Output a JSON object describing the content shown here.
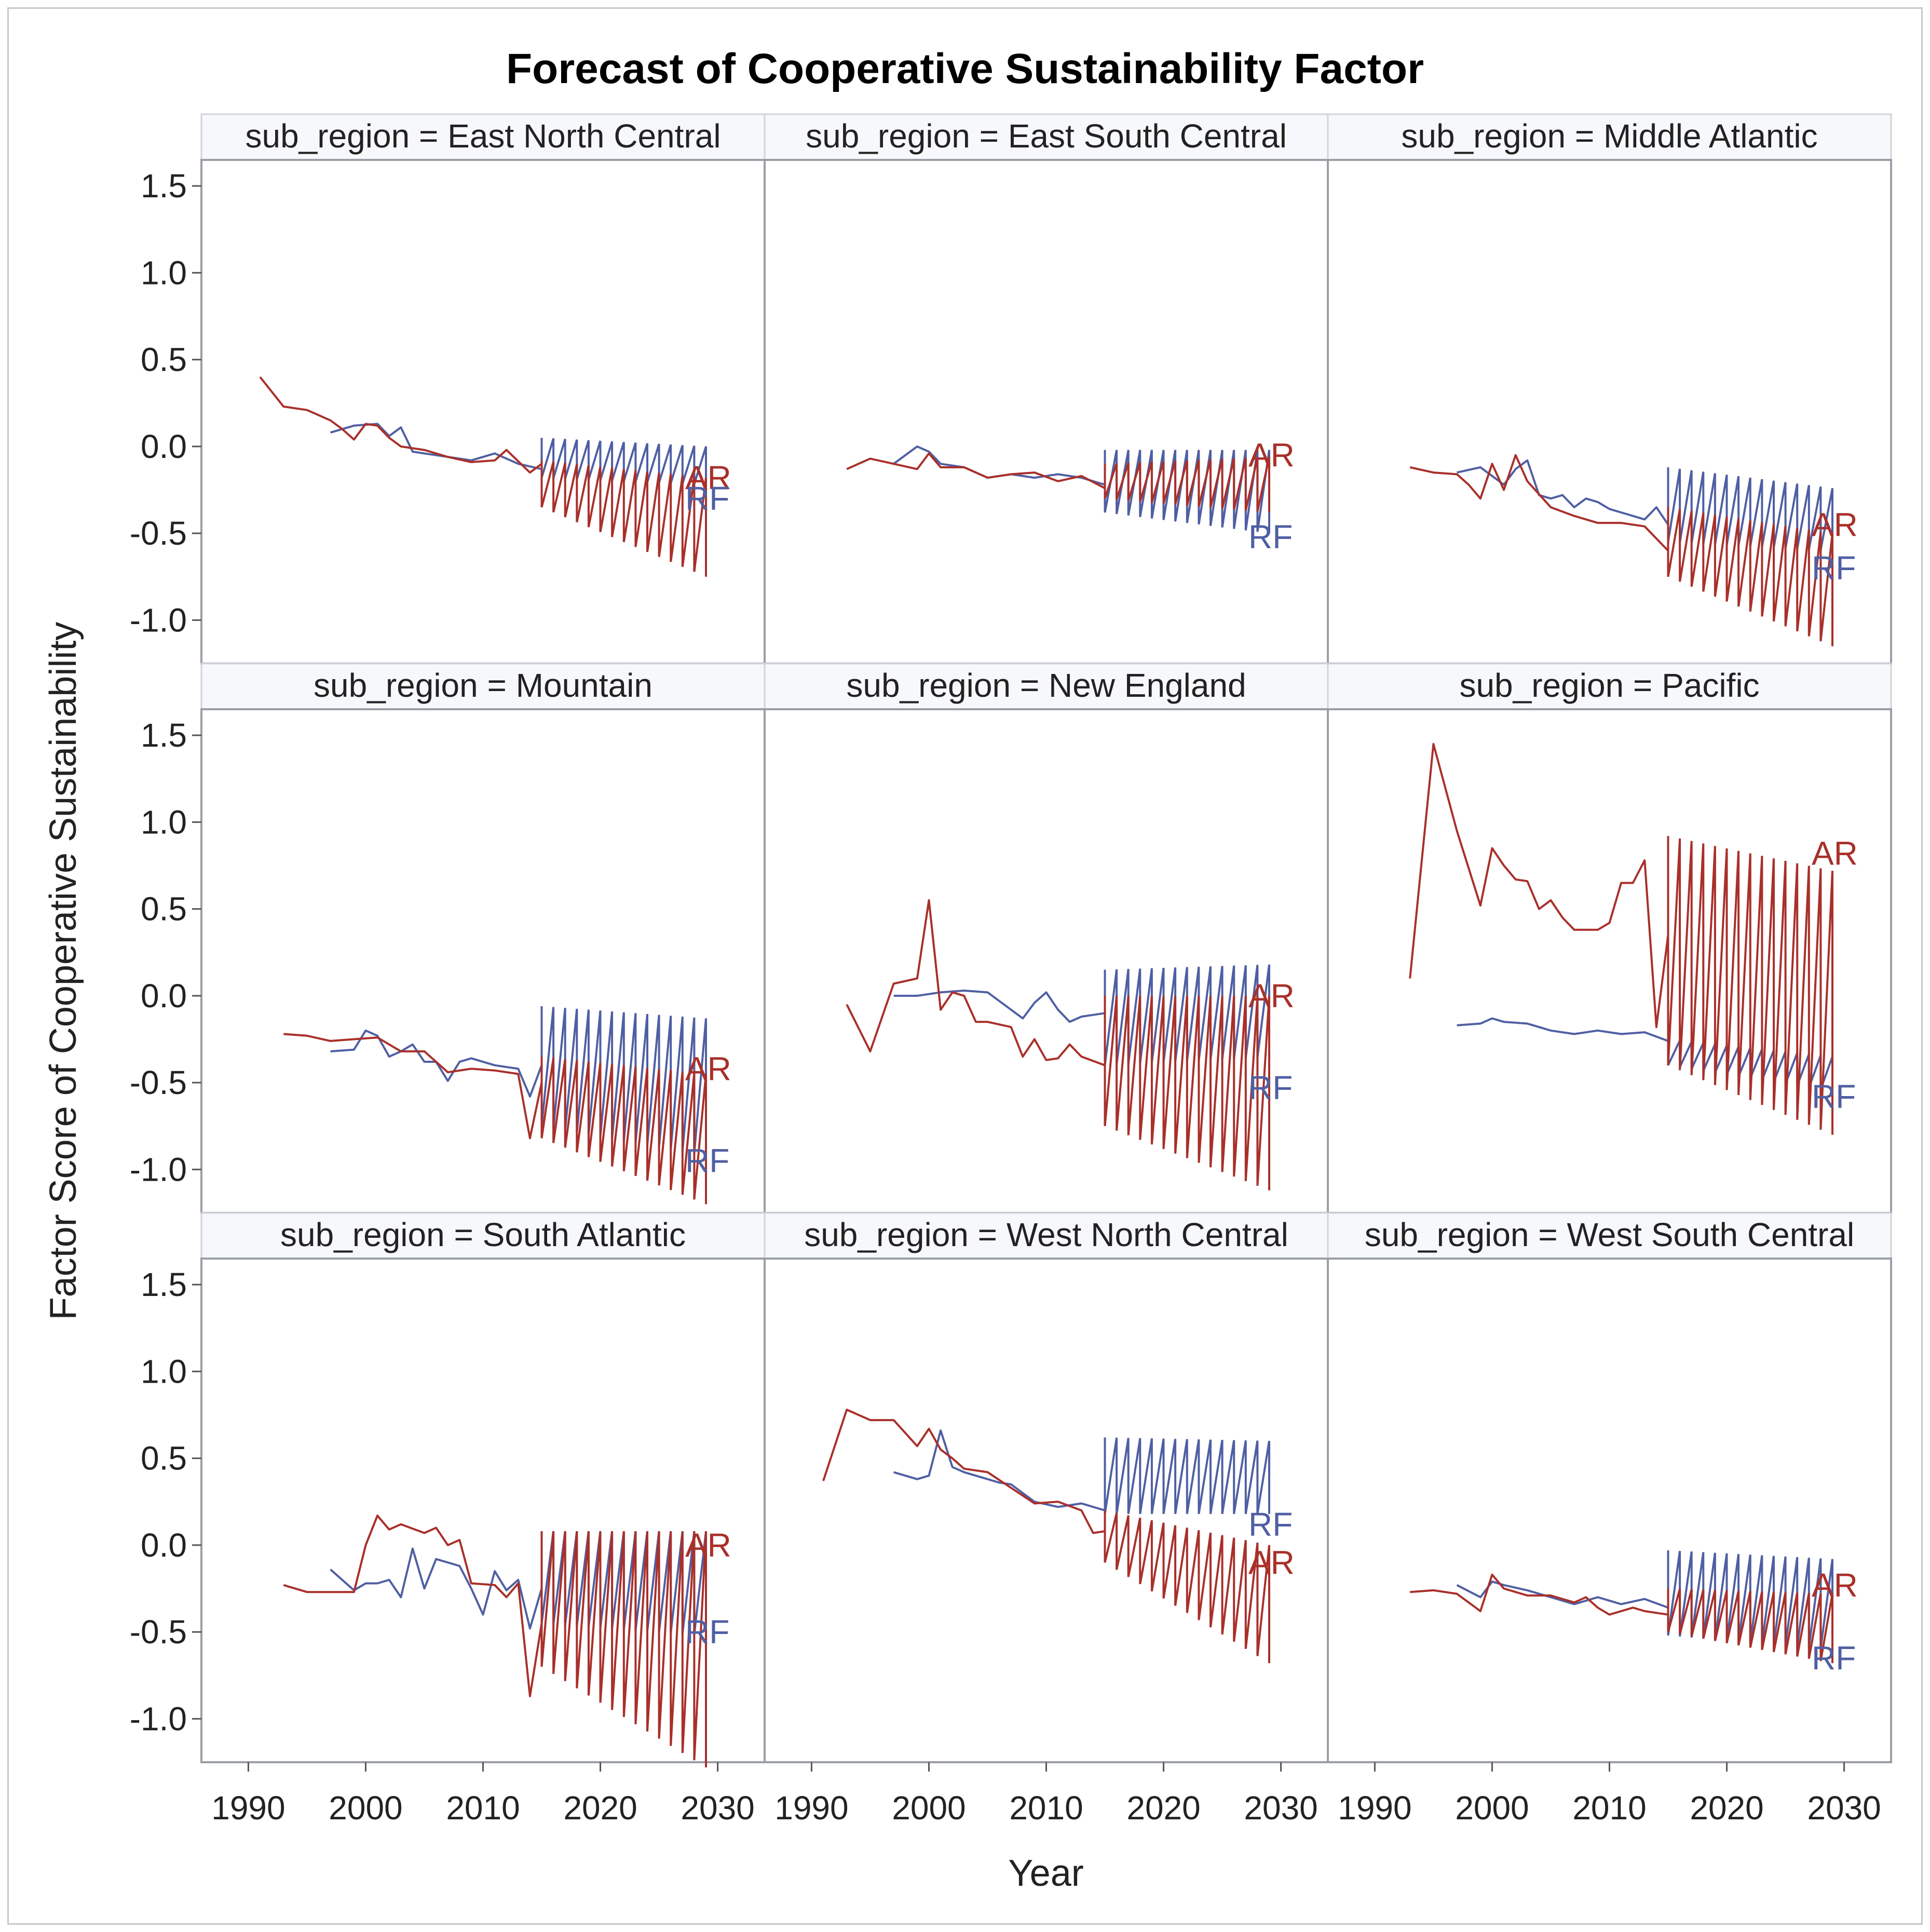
{
  "colors": {
    "ar": "#a9302a",
    "rf": "#4f5fa3",
    "panel_border": "#9a9ea6",
    "strip_bg": "#f7f8fb"
  },
  "chart_data": {
    "type": "line",
    "title": "Forecast of Cooperative Sustainability Factor",
    "xlabel": "Year",
    "ylabel": "Factor Score of Cooperative Sustainability",
    "xlim": [
      1986,
      2034
    ],
    "ylim": [
      -1.25,
      1.65
    ],
    "x_ticks": [
      1990,
      2000,
      2010,
      2020,
      2030
    ],
    "x_tick_labels": [
      "1990",
      "2000",
      "2010",
      "2020",
      "2030"
    ],
    "y_ticks": [
      1.5,
      1.0,
      0.5,
      0.0,
      -0.5,
      -1.0
    ],
    "y_tick_labels": [
      "1.5",
      "1.0",
      "0.5",
      "0.0",
      "-0.5",
      "-1.0"
    ],
    "forecast_years": [
      2015,
      2016,
      2017,
      2018,
      2019,
      2020,
      2021,
      2022,
      2023,
      2024,
      2025,
      2026,
      2027,
      2028,
      2029
    ],
    "series_labels": {
      "ar": "AR",
      "rf": "RF"
    },
    "panels": [
      {
        "strip": "sub_region = East North Central",
        "ar": {
          "x": [
            1991,
            1993,
            1995,
            1997,
            1998,
            1999,
            2000,
            2001,
            2002,
            2003,
            2005,
            2007,
            2009,
            2011,
            2012,
            2014,
            2015
          ],
          "y": [
            0.4,
            0.23,
            0.21,
            0.15,
            0.1,
            0.04,
            0.13,
            0.12,
            0.05,
            0.0,
            -0.02,
            -0.06,
            -0.09,
            -0.08,
            -0.02,
            -0.15,
            -0.1
          ]
        },
        "ar_band": {
          "start_high": -0.08,
          "end_high": -0.18,
          "start_low": -0.35,
          "end_low": -0.75
        },
        "ar_label_y": -0.18,
        "rf": {
          "x": [
            1997,
            1999,
            2001,
            2002,
            2003,
            2004,
            2005,
            2007,
            2009,
            2011,
            2013,
            2015
          ],
          "y": [
            0.08,
            0.12,
            0.13,
            0.06,
            0.11,
            -0.03,
            -0.04,
            -0.06,
            -0.08,
            -0.04,
            -0.1,
            -0.13
          ]
        },
        "rf_band": {
          "start_high": 0.05,
          "end_high": 0.0,
          "start_low": -0.18,
          "end_low": -0.22
        },
        "rf_label_y": -0.3
      },
      {
        "strip": "sub_region = East South Central",
        "ar": {
          "x": [
            1993,
            1995,
            1997,
            1999,
            2000,
            2001,
            2003,
            2005,
            2007,
            2009,
            2011,
            2013,
            2015
          ],
          "y": [
            -0.13,
            -0.07,
            -0.1,
            -0.13,
            -0.04,
            -0.12,
            -0.12,
            -0.18,
            -0.16,
            -0.15,
            -0.2,
            -0.17,
            -0.24
          ]
        },
        "ar_band": {
          "start_high": -0.1,
          "end_high": -0.06,
          "start_low": -0.3,
          "end_low": -0.38
        },
        "ar_label_y": -0.05,
        "rf": {
          "x": [
            1997,
            1999,
            2000,
            2001,
            2003,
            2005,
            2007,
            2009,
            2011,
            2013,
            2015
          ],
          "y": [
            -0.1,
            0.0,
            -0.03,
            -0.1,
            -0.12,
            -0.18,
            -0.16,
            -0.18,
            -0.16,
            -0.18,
            -0.22
          ]
        },
        "rf_band": {
          "start_high": -0.02,
          "end_high": -0.02,
          "start_low": -0.38,
          "end_low": -0.5
        },
        "rf_label_y": -0.52
      },
      {
        "strip": "sub_region = Middle Atlantic",
        "ar": {
          "x": [
            1993,
            1995,
            1997,
            1998,
            1999,
            2000,
            2001,
            2002,
            2003,
            2005,
            2007,
            2009,
            2011,
            2013,
            2015
          ],
          "y": [
            -0.12,
            -0.15,
            -0.16,
            -0.22,
            -0.3,
            -0.1,
            -0.25,
            -0.05,
            -0.2,
            -0.35,
            -0.4,
            -0.44,
            -0.44,
            -0.46,
            -0.6
          ]
        },
        "ar_band": {
          "start_high": -0.35,
          "end_high": -0.5,
          "start_low": -0.75,
          "end_low": -1.15
        },
        "ar_label_y": -0.45,
        "rf": {
          "x": [
            1997,
            1999,
            2001,
            2002,
            2003,
            2004,
            2005,
            2006,
            2007,
            2008,
            2009,
            2010,
            2011,
            2012,
            2013,
            2014,
            2015
          ],
          "y": [
            -0.15,
            -0.12,
            -0.22,
            -0.13,
            -0.08,
            -0.28,
            -0.3,
            -0.28,
            -0.35,
            -0.3,
            -0.32,
            -0.36,
            -0.38,
            -0.4,
            -0.42,
            -0.35,
            -0.45
          ]
        },
        "rf_band": {
          "start_high": -0.12,
          "end_high": -0.24,
          "start_low": -0.55,
          "end_low": -0.6
        },
        "rf_label_y": -0.7
      },
      {
        "strip": "sub_region = Mountain",
        "ar": {
          "x": [
            1993,
            1995,
            1997,
            1999,
            2001,
            2003,
            2005,
            2007,
            2009,
            2011,
            2013,
            2014,
            2015
          ],
          "y": [
            -0.22,
            -0.23,
            -0.26,
            -0.25,
            -0.24,
            -0.32,
            -0.32,
            -0.44,
            -0.42,
            -0.43,
            -0.45,
            -0.82,
            -0.5
          ]
        },
        "ar_band": {
          "start_high": -0.35,
          "end_high": -0.45,
          "start_low": -0.82,
          "end_low": -1.2
        },
        "ar_label_y": -0.42,
        "rf": {
          "x": [
            1997,
            1999,
            2000,
            2001,
            2002,
            2003,
            2004,
            2005,
            2006,
            2007,
            2008,
            2009,
            2011,
            2013,
            2014,
            2015
          ],
          "y": [
            -0.32,
            -0.31,
            -0.2,
            -0.23,
            -0.35,
            -0.32,
            -0.28,
            -0.38,
            -0.38,
            -0.49,
            -0.38,
            -0.36,
            -0.4,
            -0.42,
            -0.58,
            -0.4
          ]
        },
        "rf_band": {
          "start_high": -0.06,
          "end_high": -0.13,
          "start_low": -0.75,
          "end_low": -0.92
        },
        "rf_label_y": -0.95
      },
      {
        "strip": "sub_region = New England",
        "ar": {
          "x": [
            1993,
            1995,
            1997,
            1999,
            2000,
            2001,
            2002,
            2003,
            2004,
            2005,
            2007,
            2008,
            2009,
            2010,
            2011,
            2012,
            2013,
            2015
          ],
          "y": [
            -0.05,
            -0.32,
            0.07,
            0.1,
            0.55,
            -0.08,
            0.02,
            0.0,
            -0.15,
            -0.15,
            -0.18,
            -0.35,
            -0.25,
            -0.37,
            -0.36,
            -0.28,
            -0.35,
            -0.4
          ]
        },
        "ar_band": {
          "start_high": 0.0,
          "end_high": 0.0,
          "start_low": -0.75,
          "end_low": -1.12
        },
        "ar_label_y": 0.0,
        "rf": {
          "x": [
            1997,
            1999,
            2001,
            2003,
            2005,
            2007,
            2008,
            2009,
            2010,
            2011,
            2012,
            2013,
            2015
          ],
          "y": [
            0.0,
            0.0,
            0.02,
            0.03,
            0.02,
            -0.08,
            -0.13,
            -0.04,
            0.02,
            -0.08,
            -0.15,
            -0.12,
            -0.1
          ]
        },
        "rf_band": {
          "start_high": 0.15,
          "end_high": 0.18,
          "start_low": -0.4,
          "end_low": -0.35
        },
        "rf_label_y": -0.53
      },
      {
        "strip": "sub_region = Pacific",
        "ar": {
          "x": [
            1993,
            1995,
            1997,
            1999,
            2000,
            2001,
            2002,
            2003,
            2004,
            2005,
            2006,
            2007,
            2009,
            2010,
            2011,
            2012,
            2013,
            2014,
            2015
          ],
          "y": [
            0.1,
            1.45,
            0.95,
            0.52,
            0.85,
            0.75,
            0.67,
            0.66,
            0.5,
            0.55,
            0.45,
            0.38,
            0.38,
            0.42,
            0.65,
            0.65,
            0.78,
            -0.18,
            0.35
          ]
        },
        "ar_band": {
          "start_high": 0.92,
          "end_high": 0.72,
          "start_low": -0.4,
          "end_low": -0.8
        },
        "ar_label_y": 0.82,
        "rf": {
          "x": [
            1997,
            1999,
            2000,
            2001,
            2003,
            2005,
            2007,
            2009,
            2011,
            2013,
            2015
          ],
          "y": [
            -0.17,
            -0.16,
            -0.13,
            -0.15,
            -0.16,
            -0.2,
            -0.22,
            -0.2,
            -0.22,
            -0.21,
            -0.26
          ]
        },
        "rf_band": {
          "start_high": -0.25,
          "end_high": -0.35,
          "start_low": -0.4,
          "end_low": -0.55
        },
        "rf_label_y": -0.58
      },
      {
        "strip": "sub_region = South Atlantic",
        "ar": {
          "x": [
            1993,
            1995,
            1997,
            1999,
            2000,
            2001,
            2002,
            2003,
            2005,
            2006,
            2007,
            2008,
            2009,
            2011,
            2012,
            2013,
            2014,
            2015
          ],
          "y": [
            -0.23,
            -0.27,
            -0.27,
            -0.27,
            0.0,
            0.17,
            0.09,
            0.12,
            0.07,
            0.1,
            0.0,
            0.03,
            -0.22,
            -0.23,
            -0.3,
            -0.22,
            -0.87,
            -0.45
          ]
        },
        "ar_band": {
          "start_high": 0.08,
          "end_high": 0.08,
          "start_low": -0.7,
          "end_low": -1.28
        },
        "ar_label_y": 0.0,
        "rf": {
          "x": [
            1997,
            1999,
            2000,
            2001,
            2002,
            2003,
            2004,
            2005,
            2006,
            2008,
            2009,
            2010,
            2011,
            2012,
            2013,
            2014,
            2015
          ],
          "y": [
            -0.14,
            -0.26,
            -0.22,
            -0.22,
            -0.2,
            -0.3,
            -0.02,
            -0.25,
            -0.08,
            -0.12,
            -0.25,
            -0.4,
            -0.15,
            -0.26,
            -0.2,
            -0.48,
            -0.25
          ]
        },
        "rf_band": {
          "start_high": 0.08,
          "end_high": 0.08,
          "start_low": -0.45,
          "end_low": -0.52
        },
        "rf_label_y": -0.5
      },
      {
        "strip": "sub_region = West North Central",
        "ar": {
          "x": [
            1991,
            1993,
            1995,
            1997,
            1999,
            2000,
            2001,
            2002,
            2003,
            2005,
            2007,
            2009,
            2011,
            2013,
            2014,
            2015
          ],
          "y": [
            0.37,
            0.78,
            0.72,
            0.72,
            0.57,
            0.67,
            0.55,
            0.5,
            0.44,
            0.42,
            0.33,
            0.24,
            0.25,
            0.2,
            0.07,
            0.08
          ]
        },
        "ar_band": {
          "start_high": 0.2,
          "end_high": 0.0,
          "start_low": -0.1,
          "end_low": -0.68
        },
        "ar_label_y": -0.1,
        "rf": {
          "x": [
            1997,
            1999,
            2000,
            2001,
            2002,
            2003,
            2005,
            2006,
            2007,
            2008,
            2009,
            2011,
            2013,
            2015
          ],
          "y": [
            0.42,
            0.38,
            0.4,
            0.66,
            0.45,
            0.42,
            0.38,
            0.36,
            0.35,
            0.3,
            0.25,
            0.22,
            0.24,
            0.2
          ]
        },
        "rf_band": {
          "start_high": 0.62,
          "end_high": 0.6,
          "start_low": 0.18,
          "end_low": 0.18
        },
        "rf_label_y": 0.12
      },
      {
        "strip": "sub_region = West South Central",
        "ar": {
          "x": [
            1993,
            1995,
            1997,
            1999,
            2000,
            2001,
            2003,
            2005,
            2007,
            2008,
            2009,
            2010,
            2011,
            2012,
            2013,
            2015
          ],
          "y": [
            -0.27,
            -0.26,
            -0.28,
            -0.38,
            -0.17,
            -0.25,
            -0.29,
            -0.29,
            -0.33,
            -0.3,
            -0.36,
            -0.4,
            -0.38,
            -0.36,
            -0.38,
            -0.4
          ]
        },
        "ar_band": {
          "start_high": -0.25,
          "end_high": -0.28,
          "start_low": -0.5,
          "end_low": -0.68
        },
        "ar_label_y": -0.23,
        "rf": {
          "x": [
            1997,
            1999,
            2000,
            2001,
            2003,
            2005,
            2007,
            2009,
            2011,
            2013,
            2015
          ],
          "y": [
            -0.23,
            -0.3,
            -0.21,
            -0.23,
            -0.26,
            -0.3,
            -0.34,
            -0.3,
            -0.34,
            -0.31,
            -0.36
          ]
        },
        "rf_band": {
          "start_high": -0.03,
          "end_high": -0.08,
          "start_low": -0.52,
          "end_low": -0.6
        },
        "rf_label_y": -0.65
      }
    ]
  }
}
